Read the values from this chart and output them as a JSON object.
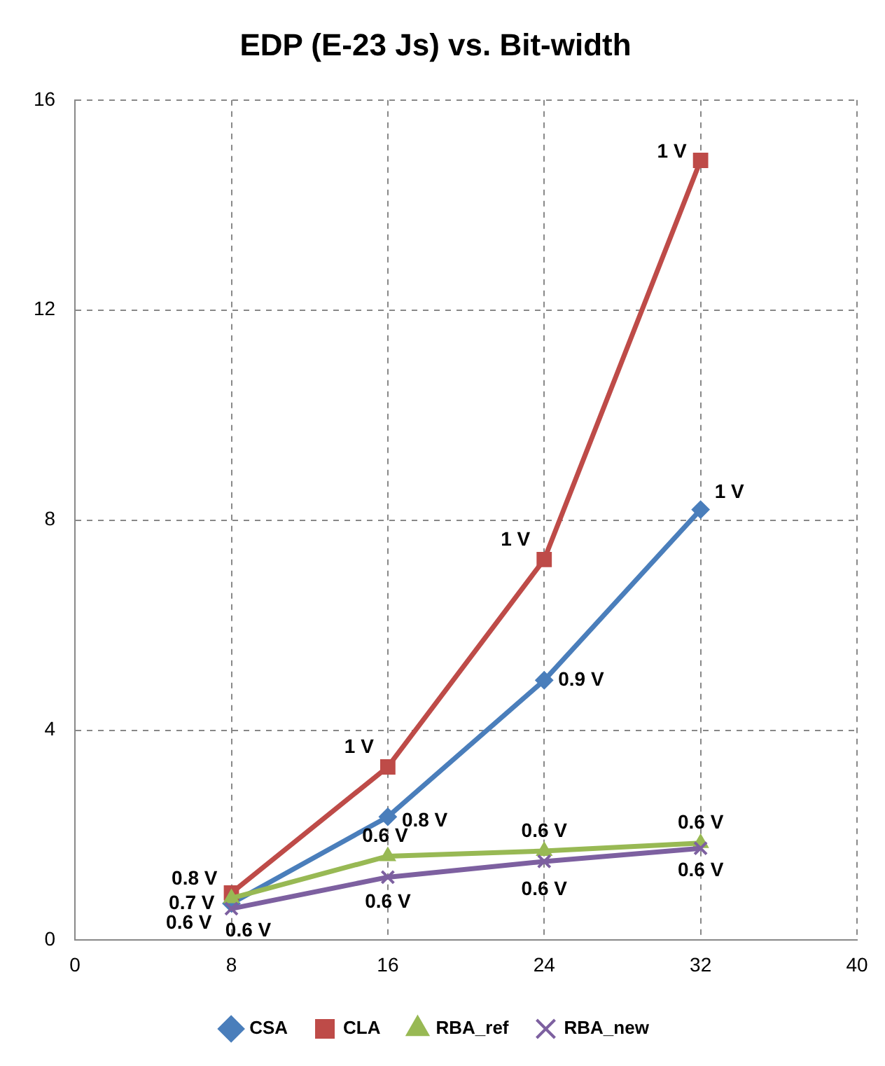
{
  "chart_data": {
    "type": "line",
    "title": "EDP (E-23 Js) vs. Bit-width",
    "x": [
      8,
      16,
      24,
      32
    ],
    "series": [
      {
        "name": "CSA",
        "color": "#4a7ebb",
        "marker": "diamond",
        "values": [
          0.7,
          2.35,
          4.95,
          8.2
        ]
      },
      {
        "name": "CLA",
        "color": "#be4b48",
        "marker": "square",
        "values": [
          0.9,
          3.3,
          7.25,
          14.85
        ]
      },
      {
        "name": "RBA_ref",
        "color": "#98b954",
        "marker": "triangle",
        "values": [
          0.8,
          1.6,
          1.7,
          1.85
        ]
      },
      {
        "name": "RBA_new",
        "color": "#7d60a0",
        "marker": "cross",
        "values": [
          0.6,
          1.2,
          1.5,
          1.75
        ]
      }
    ],
    "annotations": [
      {
        "text": "0.7 V",
        "x": 8,
        "y": 0.7
      },
      {
        "text": "0.8 V",
        "x": 16,
        "y": 2.35
      },
      {
        "text": "0.9 V",
        "x": 24,
        "y": 4.95
      },
      {
        "text": "1 V",
        "x": 32,
        "y": 8.2
      },
      {
        "text": "0.8 V",
        "x": 8,
        "y": 0.9
      },
      {
        "text": "1 V",
        "x": 16,
        "y": 3.3
      },
      {
        "text": "1 V",
        "x": 24,
        "y": 7.25
      },
      {
        "text": "1 V",
        "x": 32,
        "y": 14.85
      },
      {
        "text": "0.6 V",
        "x": 8,
        "y": 0.8
      },
      {
        "text": "0.6 V",
        "x": 16,
        "y": 1.6
      },
      {
        "text": "0.6 V",
        "x": 24,
        "y": 1.7
      },
      {
        "text": "0.6 V",
        "x": 32,
        "y": 1.85
      },
      {
        "text": "0.6 V",
        "x": 8,
        "y": 0.6
      },
      {
        "text": "0.6 V",
        "x": 16,
        "y": 1.2
      },
      {
        "text": "0.6 V",
        "x": 24,
        "y": 1.5
      },
      {
        "text": "0.6 V",
        "x": 32,
        "y": 1.75
      }
    ],
    "xlim": [
      0,
      40
    ],
    "xticks": [
      0,
      8,
      16,
      24,
      32,
      40
    ],
    "ylim": [
      0,
      16
    ],
    "yticks": [
      0,
      4,
      8,
      12,
      16
    ],
    "grid": true,
    "legend": "bottom"
  }
}
